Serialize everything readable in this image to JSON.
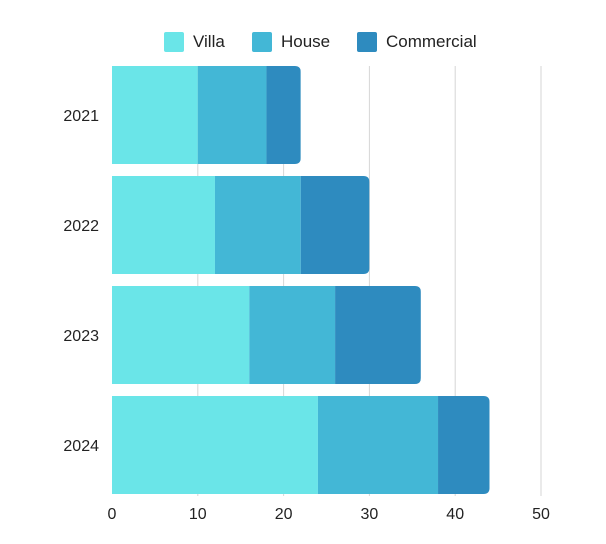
{
  "chart_data": {
    "type": "bar",
    "orientation": "horizontal",
    "stacked": true,
    "title": "",
    "xlabel": "",
    "ylabel": "",
    "categories": [
      "2021",
      "2022",
      "2023",
      "2024"
    ],
    "series": [
      {
        "name": "Villa",
        "color": "#6ae5e8",
        "values": [
          10,
          12,
          16,
          24
        ]
      },
      {
        "name": "House",
        "color": "#43b7d6",
        "values": [
          8,
          10,
          10,
          14
        ]
      },
      {
        "name": "Commercial",
        "color": "#2e8bbf",
        "values": [
          4,
          8,
          10,
          6
        ]
      }
    ],
    "xlim": [
      0,
      50
    ],
    "xticks": [
      0,
      10,
      20,
      30,
      40,
      50
    ],
    "grid": true,
    "legend_position": "top"
  }
}
